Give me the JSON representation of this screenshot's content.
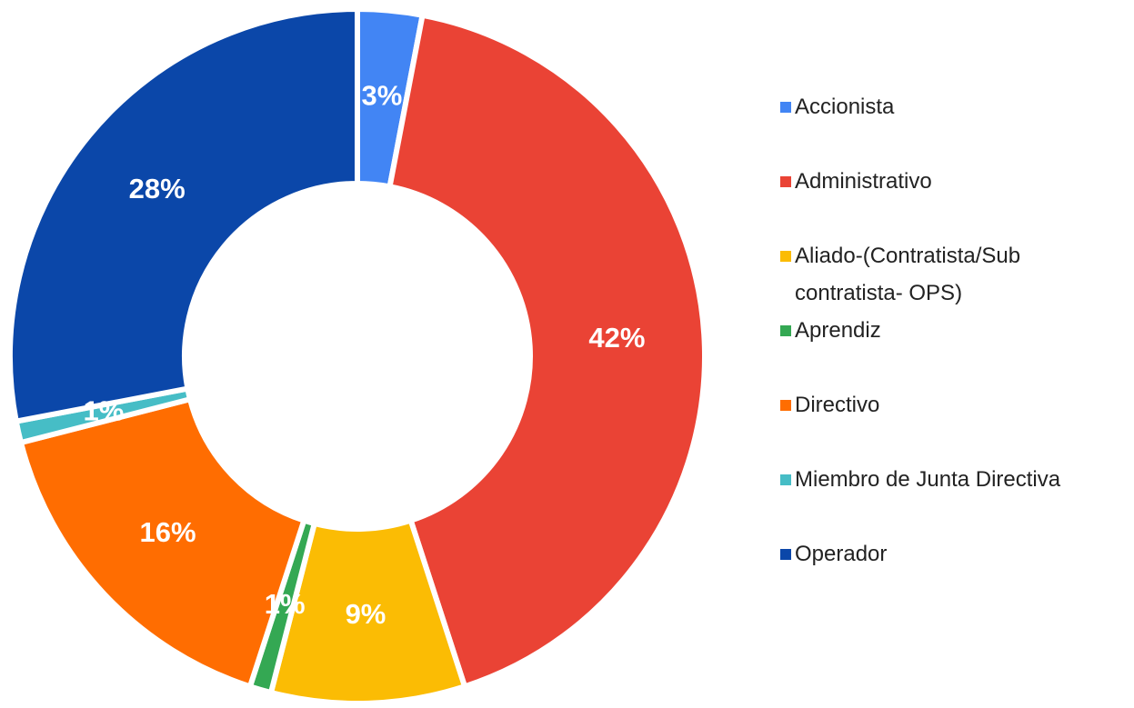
{
  "chart_data": {
    "type": "donut",
    "categories": [
      "Accionista",
      "Administrativo",
      "Aliado-(Contratista/Sub contratista- OPS)",
      "Aprendiz",
      "Directivo",
      "Miembro de Junta Directiva",
      "Operador"
    ],
    "values": [
      3,
      42,
      9,
      1,
      16,
      1,
      28
    ],
    "value_labels": [
      "3%",
      "42%",
      "9%",
      "1%",
      "16%",
      "1%",
      "28%"
    ],
    "colors": [
      "#4285f4",
      "#ea4335",
      "#fbbc04",
      "#34a853",
      "#ff6d01",
      "#46bdc6",
      "#0b47a9"
    ],
    "legend": "right"
  }
}
